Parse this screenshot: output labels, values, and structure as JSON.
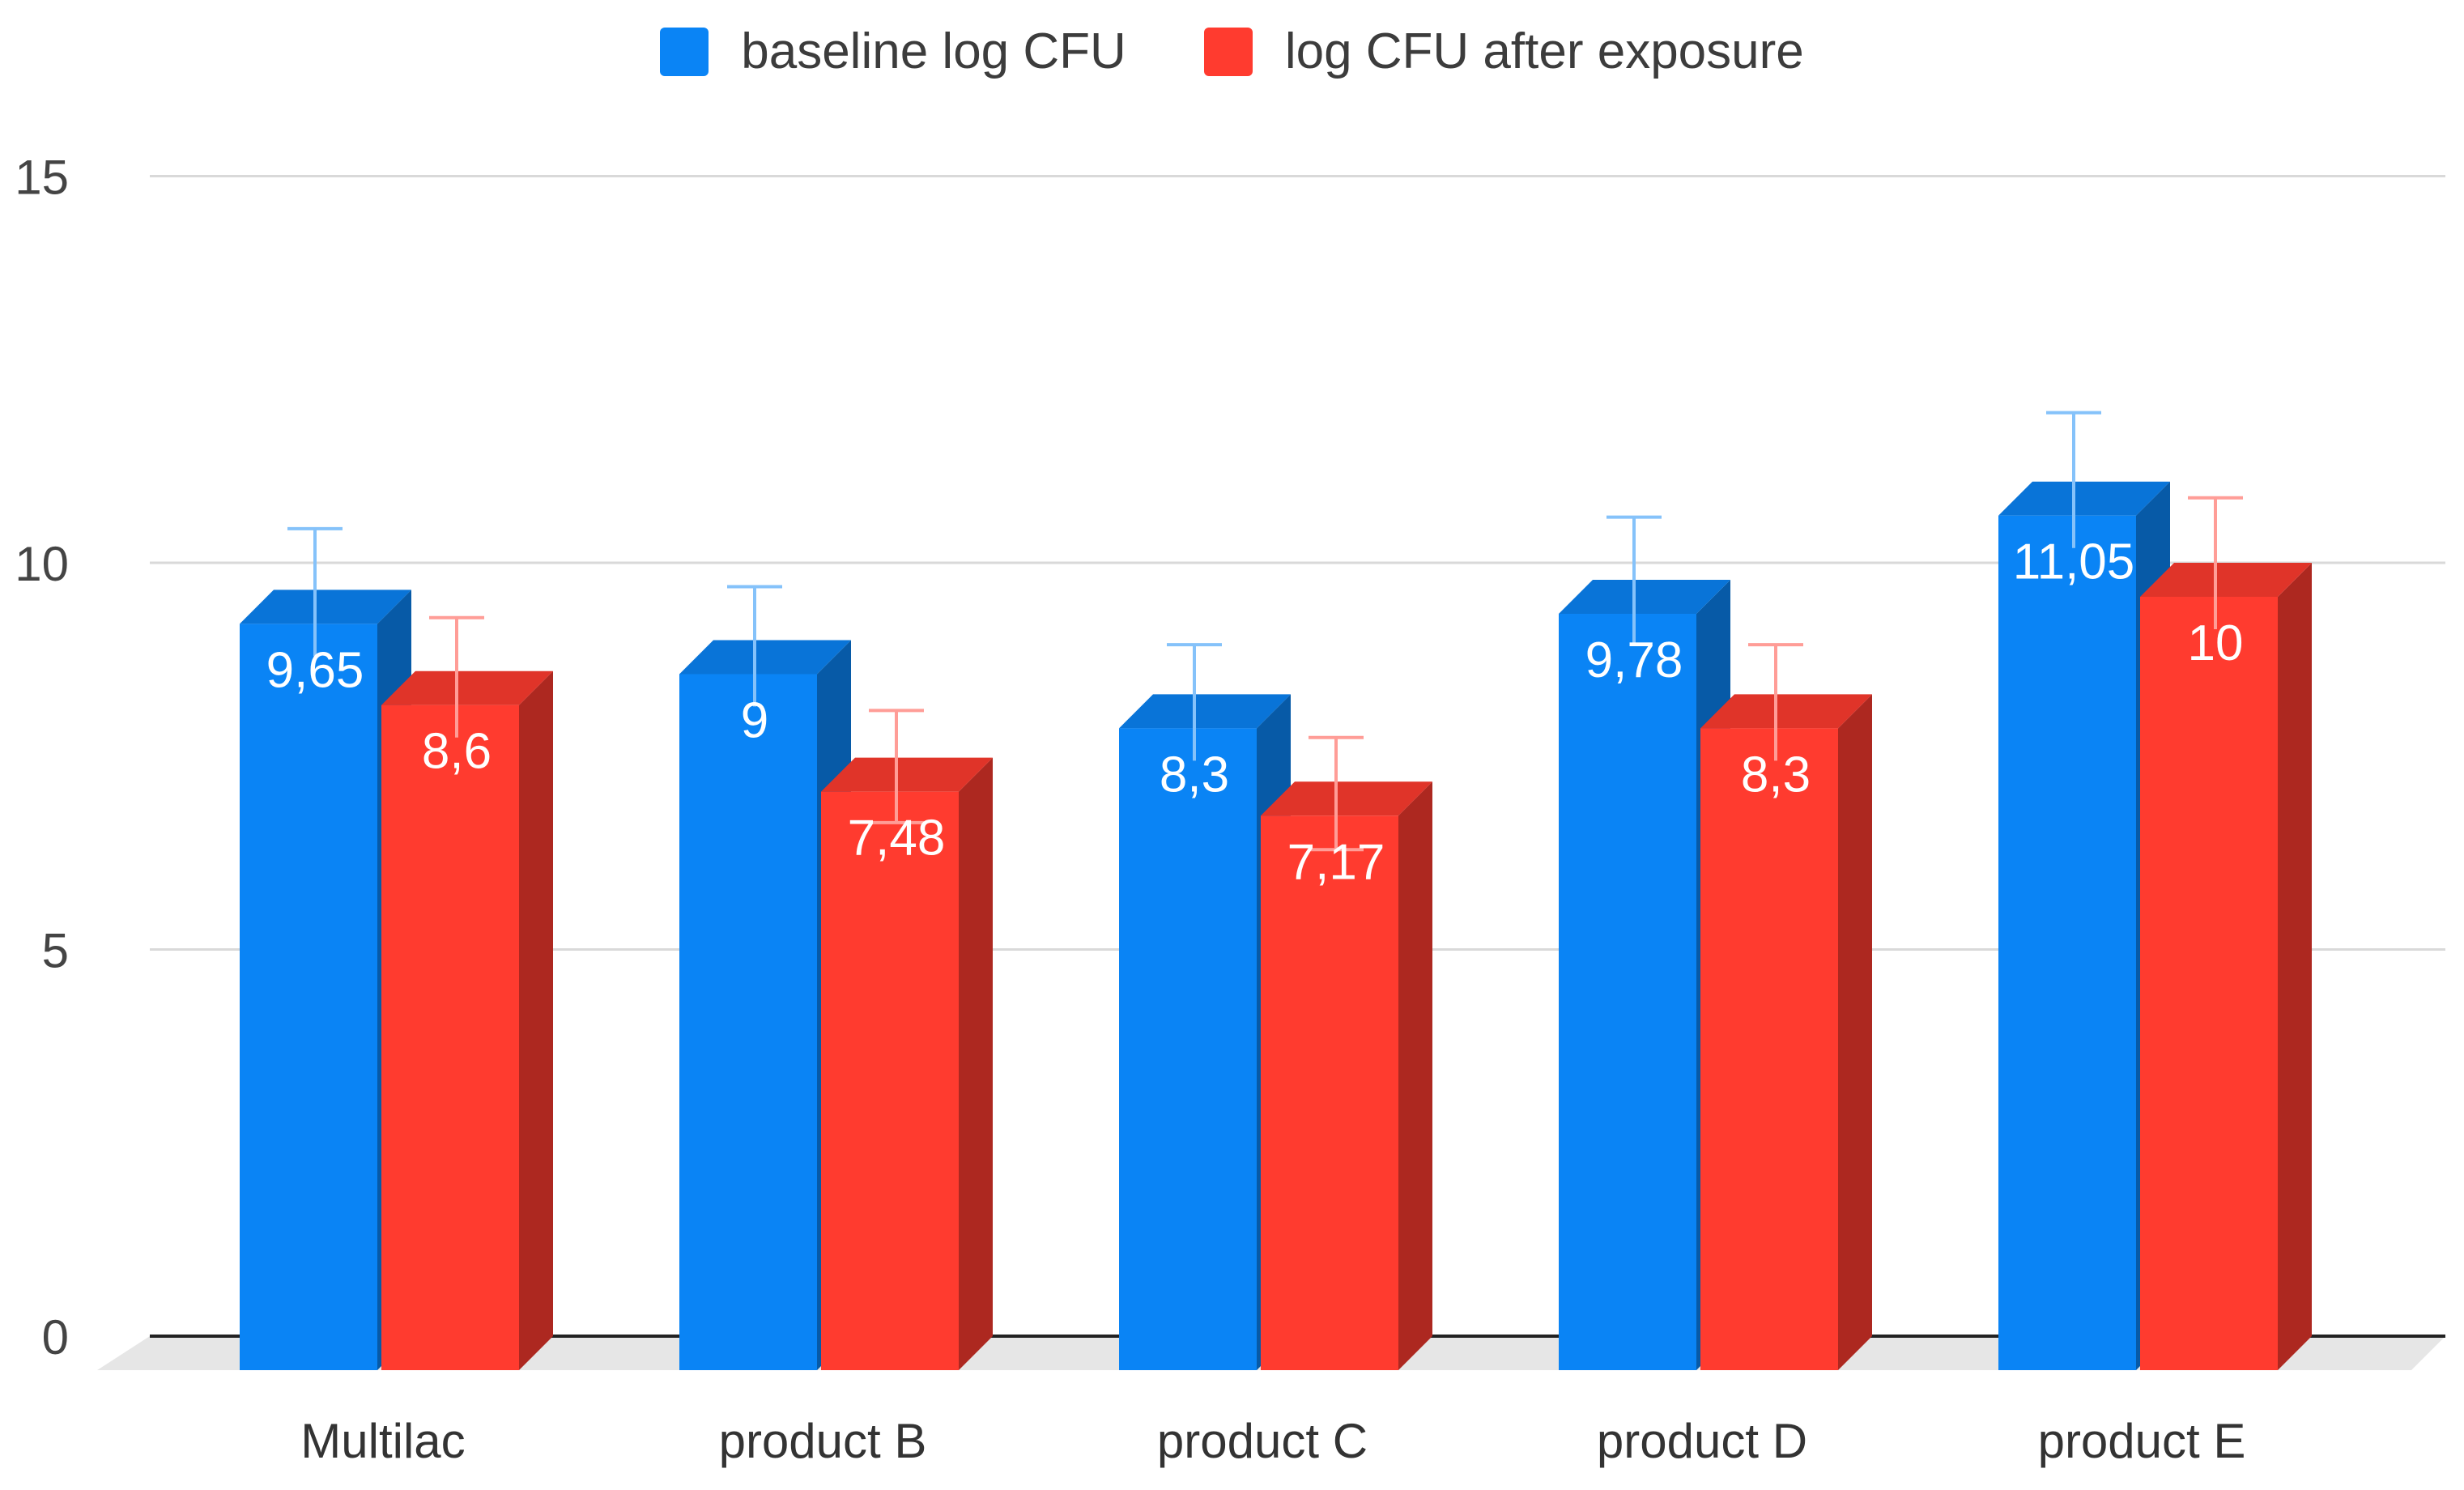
{
  "chart_data": {
    "type": "bar",
    "title": "",
    "xlabel": "",
    "ylabel": "",
    "ylim": [
      0,
      15
    ],
    "yticks": [
      0,
      5,
      10,
      15
    ],
    "grid": true,
    "legend_position": "top-center",
    "categories": [
      "Multilac",
      "product B",
      "product C",
      "product D",
      "product E"
    ],
    "series": [
      {
        "name": "baseline log CFU",
        "color": "#0a84f5",
        "values": [
          9.65,
          9,
          8.3,
          9.78,
          11.05
        ],
        "labels": [
          "9,65",
          "9",
          "8,3",
          "9,78",
          "11,05"
        ],
        "error_upper": [
          10.65,
          9.9,
          9.15,
          10.8,
          12.15
        ]
      },
      {
        "name": "log CFU after exposure",
        "color": "#ff3b2f",
        "values": [
          8.6,
          7.48,
          7.17,
          8.3,
          10
        ],
        "labels": [
          "8,6",
          "7,48",
          "7,17",
          "8,3",
          "10"
        ],
        "error_upper": [
          9.5,
          8.3,
          7.95,
          9.15,
          11.05
        ],
        "error_lower": [
          null,
          6.85,
          6.5,
          null,
          null
        ]
      }
    ]
  }
}
